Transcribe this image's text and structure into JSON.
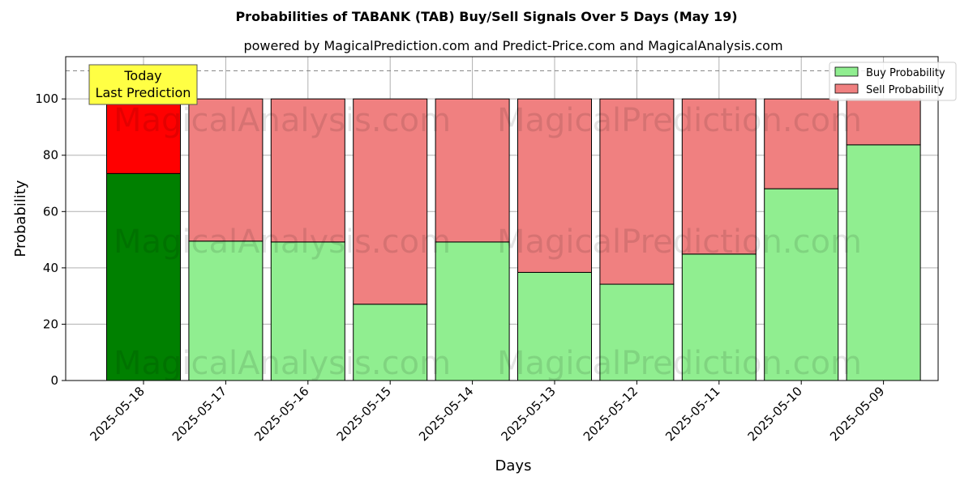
{
  "chart_data": {
    "type": "bar",
    "stacked": true,
    "title": "Probabilities of TABANK (TAB) Buy/Sell Signals Over 5 Days (May 19)",
    "subtitle": "powered by MagicalPrediction.com and Predict-Price.com and MagicalAnalysis.com",
    "xlabel": "Days",
    "ylabel": "Probability",
    "ylim": [
      0,
      115
    ],
    "yticks": [
      0,
      20,
      40,
      60,
      80,
      100
    ],
    "grid": true,
    "legend_position": "top-right",
    "reference_line": 110,
    "categories": [
      "2025-05-18",
      "2025-05-17",
      "2025-05-16",
      "2025-05-15",
      "2025-05-14",
      "2025-05-13",
      "2025-05-12",
      "2025-05-11",
      "2025-05-10",
      "2025-05-09"
    ],
    "series": [
      {
        "name": "Buy Probability",
        "values": [
          73.5,
          49.5,
          49.2,
          27.1,
          49.2,
          38.4,
          34.2,
          44.9,
          68.1,
          83.7
        ]
      },
      {
        "name": "Sell Probability",
        "values": [
          26.5,
          50.5,
          50.8,
          72.9,
          50.8,
          61.6,
          65.8,
          55.1,
          31.9,
          16.3
        ]
      }
    ],
    "colors": {
      "buy": "#90ee90",
      "sell": "#f08080",
      "today_buy": "#008000",
      "today_sell": "#ff0000",
      "annotation_bg": "#ffff44"
    },
    "annotation": {
      "line1": "Today",
      "line2": "Last Prediction"
    },
    "watermarks": [
      "MagicalAnalysis.com",
      "MagicalPrediction.com"
    ]
  }
}
